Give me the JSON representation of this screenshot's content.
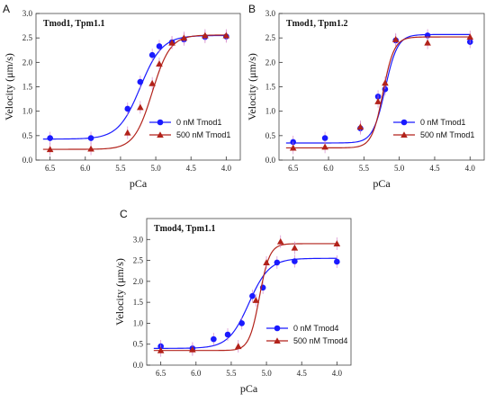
{
  "colors": {
    "blue": "#1a1aff",
    "red": "#b2221a",
    "axis": "#333333",
    "frame": "#444444",
    "errorbar": "#d27cc6"
  },
  "chart_data": [
    {
      "type": "scatter",
      "panel": "A",
      "title": "Tmod1, Tpm1.1",
      "xlabel": "pCa",
      "ylabel": "Velocity (μm/s)",
      "xlim": [
        6.7,
        3.8
      ],
      "ylim": [
        0.0,
        3.0
      ],
      "x_reversed": true,
      "xticks": [
        "6.5",
        "6.0",
        "5.5",
        "5.0",
        "4.5",
        "4.0"
      ],
      "yticks": [
        "0.0",
        "0.5",
        "1.0",
        "1.5",
        "2.0",
        "2.5",
        "3.0"
      ],
      "legend_position": "bottom-right",
      "series": [
        {
          "name": "0 nM Tmod1",
          "color": "blue",
          "marker": "circle",
          "x": [
            6.5,
            5.92,
            5.4,
            5.22,
            5.05,
            4.95,
            4.77,
            4.6,
            4.3,
            4.0
          ],
          "y": [
            0.45,
            0.45,
            1.05,
            1.6,
            2.15,
            2.33,
            2.41,
            2.47,
            2.52,
            2.53
          ],
          "fit": {
            "bottom": 0.43,
            "top": 2.55,
            "pca50": 5.22,
            "hill": 2.8
          }
        },
        {
          "name": "500 nM Tmod1",
          "color": "red",
          "marker": "triangle",
          "x": [
            6.5,
            5.92,
            5.4,
            5.22,
            5.05,
            4.95,
            4.77,
            4.6,
            4.3,
            4.0
          ],
          "y": [
            0.22,
            0.23,
            0.56,
            1.08,
            1.57,
            1.97,
            2.4,
            2.5,
            2.55,
            2.55
          ],
          "fit": {
            "bottom": 0.22,
            "top": 2.56,
            "pca50": 5.05,
            "hill": 3.4
          }
        }
      ]
    },
    {
      "type": "scatter",
      "panel": "B",
      "title": "Tmod1, Tpm1.2",
      "xlabel": "pCa",
      "ylabel": "Velocity (μm/s)",
      "xlim": [
        6.7,
        3.8
      ],
      "ylim": [
        0.0,
        3.0
      ],
      "x_reversed": true,
      "xticks": [
        "6.5",
        "6.0",
        "5.5",
        "5.0",
        "4.5",
        "4.0"
      ],
      "yticks": [
        "0.0",
        "0.5",
        "1.0",
        "1.5",
        "2.0",
        "2.5",
        "3.0"
      ],
      "legend_position": "bottom-right",
      "series": [
        {
          "name": "0 nM Tmod1",
          "color": "blue",
          "marker": "circle",
          "x": [
            6.5,
            6.05,
            5.55,
            5.3,
            5.2,
            5.05,
            4.6,
            4.0
          ],
          "y": [
            0.37,
            0.45,
            0.65,
            1.3,
            1.45,
            2.45,
            2.55,
            2.42
          ],
          "fit": {
            "bottom": 0.35,
            "top": 2.57,
            "pca50": 5.2,
            "hill": 5.0
          }
        },
        {
          "name": "500 nM Tmod1",
          "color": "red",
          "marker": "triangle",
          "x": [
            6.5,
            6.05,
            5.55,
            5.3,
            5.2,
            5.05,
            4.6,
            4.0
          ],
          "y": [
            0.25,
            0.27,
            0.68,
            1.2,
            1.58,
            2.47,
            2.4,
            2.52
          ],
          "fit": {
            "bottom": 0.25,
            "top": 2.52,
            "pca50": 5.23,
            "hill": 5.5
          }
        }
      ]
    },
    {
      "type": "scatter",
      "panel": "C",
      "title": "Tmod4, Tpm1.1",
      "xlabel": "pCa",
      "ylabel": "Velocity (μm/s)",
      "xlim": [
        6.7,
        3.8
      ],
      "ylim": [
        0.0,
        3.5
      ],
      "x_reversed": true,
      "xticks": [
        "6.5",
        "6.0",
        "5.5",
        "5.0",
        "4.5",
        "4.0"
      ],
      "yticks": [
        "0.0",
        "0.5",
        "1.0",
        "1.5",
        "2.0",
        "2.5",
        "3.0"
      ],
      "legend_position": "bottom-right",
      "series": [
        {
          "name": "0 nM Tmod4",
          "color": "blue",
          "marker": "circle",
          "x": [
            6.5,
            6.05,
            5.75,
            5.55,
            5.35,
            5.2,
            5.05,
            4.85,
            4.6,
            4.0
          ],
          "y": [
            0.45,
            0.4,
            0.62,
            0.73,
            1.0,
            1.65,
            1.85,
            2.45,
            2.48,
            2.47
          ],
          "fit": {
            "bottom": 0.4,
            "top": 2.55,
            "pca50": 5.25,
            "hill": 3.0
          }
        },
        {
          "name": "500 nM Tmod4",
          "color": "red",
          "marker": "triangle",
          "x": [
            6.5,
            6.05,
            5.4,
            5.15,
            5.0,
            4.8,
            4.6,
            4.0
          ],
          "y": [
            0.35,
            0.37,
            0.45,
            1.55,
            2.45,
            2.95,
            2.8,
            2.9
          ],
          "fit": {
            "bottom": 0.35,
            "top": 2.9,
            "pca50": 5.1,
            "hill": 6.0
          }
        }
      ]
    }
  ]
}
